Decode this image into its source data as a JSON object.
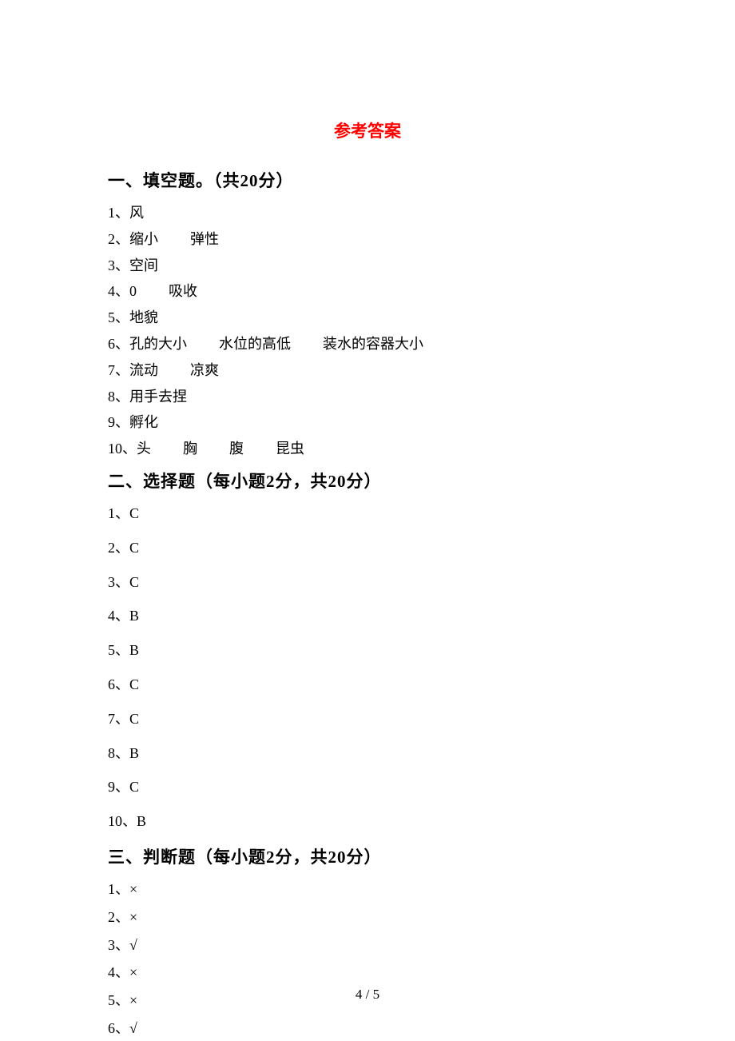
{
  "title": "参考答案",
  "section1": {
    "header": "一、填空题。（共20分）",
    "items": [
      {
        "num": "1、",
        "parts": [
          "风"
        ]
      },
      {
        "num": "2、",
        "parts": [
          "缩小",
          "弹性"
        ]
      },
      {
        "num": "3、",
        "parts": [
          "空间"
        ]
      },
      {
        "num": "4、",
        "parts": [
          "0",
          "吸收"
        ]
      },
      {
        "num": "5、",
        "parts": [
          "地貌"
        ]
      },
      {
        "num": "6、",
        "parts": [
          "孔的大小",
          "水位的高低",
          "装水的容器大小"
        ]
      },
      {
        "num": "7、",
        "parts": [
          "流动",
          "凉爽"
        ]
      },
      {
        "num": "8、",
        "parts": [
          "用手去捏"
        ]
      },
      {
        "num": "9、",
        "parts": [
          "孵化"
        ]
      },
      {
        "num": "10、",
        "parts": [
          "头",
          "胸",
          "腹",
          "昆虫"
        ]
      }
    ]
  },
  "section2": {
    "header": "二、选择题（每小题2分，共20分）",
    "items": [
      {
        "num": "1、",
        "val": "C"
      },
      {
        "num": "2、",
        "val": "C"
      },
      {
        "num": "3、",
        "val": "C"
      },
      {
        "num": "4、",
        "val": "B"
      },
      {
        "num": "5、",
        "val": "B"
      },
      {
        "num": "6、",
        "val": "C"
      },
      {
        "num": "7、",
        "val": "C"
      },
      {
        "num": "8、",
        "val": "B"
      },
      {
        "num": "9、",
        "val": "C"
      },
      {
        "num": "10、",
        "val": "B"
      }
    ]
  },
  "section3": {
    "header": "三、判断题（每小题2分，共20分）",
    "items": [
      {
        "num": "1、",
        "val": "×"
      },
      {
        "num": "2、",
        "val": "×"
      },
      {
        "num": "3、",
        "val": "√"
      },
      {
        "num": "4、",
        "val": "×"
      },
      {
        "num": "5、",
        "val": "×"
      },
      {
        "num": "6、",
        "val": "√"
      }
    ]
  },
  "footer": "4 / 5"
}
